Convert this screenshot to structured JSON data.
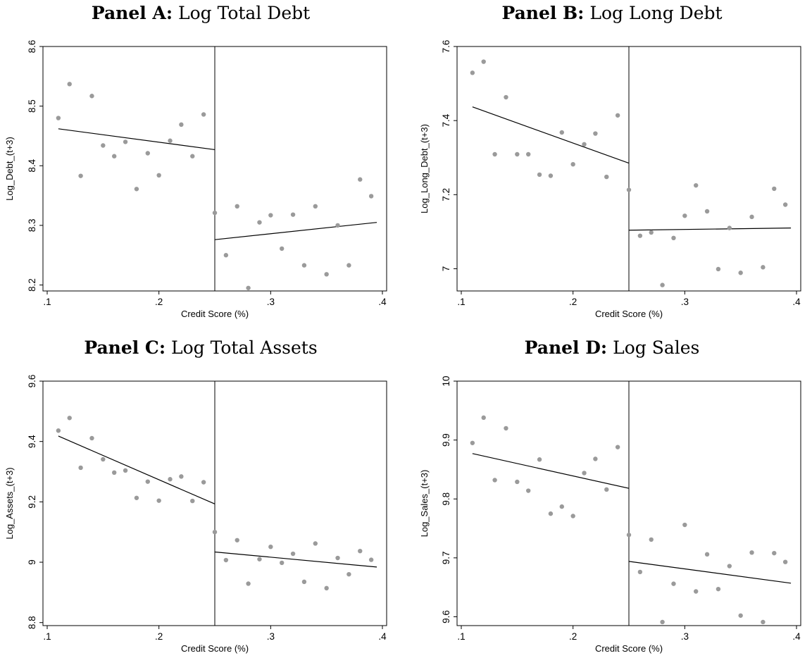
{
  "chart_data": [
    {
      "panel_label": "Panel A:",
      "title": "Log Total Debt",
      "type": "scatter",
      "xlabel": "Credit Score (%)",
      "ylabel": "Log_Debt_(t+3)",
      "xlim": [
        0.1,
        0.4
      ],
      "ylim": [
        8.19,
        8.6
      ],
      "xticks": [
        0.1,
        0.2,
        0.3,
        0.4
      ],
      "xtick_labels": [
        ".1",
        ".2",
        ".3",
        ".4"
      ],
      "yticks": [
        8.2,
        8.3,
        8.4,
        8.5,
        8.6
      ],
      "ytick_labels": [
        "8.2",
        "8.3",
        "8.4",
        "8.5",
        "8.6"
      ],
      "cutoff": 0.25,
      "x": [
        0.11,
        0.12,
        0.13,
        0.14,
        0.15,
        0.16,
        0.17,
        0.18,
        0.19,
        0.2,
        0.21,
        0.22,
        0.23,
        0.24,
        0.25,
        0.26,
        0.27,
        0.28,
        0.29,
        0.3,
        0.31,
        0.32,
        0.33,
        0.34,
        0.35,
        0.36,
        0.37,
        0.38,
        0.39
      ],
      "y": [
        8.48,
        8.537,
        8.383,
        8.517,
        8.434,
        8.416,
        8.44,
        8.361,
        8.421,
        8.384,
        8.442,
        8.469,
        8.416,
        8.486,
        8.321,
        8.25,
        8.332,
        8.195,
        8.305,
        8.317,
        8.261,
        8.318,
        8.233,
        8.332,
        8.218,
        8.3,
        8.233,
        8.377,
        8.349
      ],
      "fit_left": [
        [
          0.11,
          8.462
        ],
        [
          0.25,
          8.427
        ]
      ],
      "fit_right": [
        [
          0.25,
          8.276
        ],
        [
          0.395,
          8.305
        ]
      ]
    },
    {
      "panel_label": "Panel B:",
      "title": "Log Long Debt",
      "type": "scatter",
      "xlabel": "Credit Score (%)",
      "ylabel": "Log_Long_Debt_(t+3)",
      "xlim": [
        0.1,
        0.4
      ],
      "ylim": [
        6.94,
        7.6
      ],
      "xticks": [
        0.1,
        0.2,
        0.3,
        0.4
      ],
      "xtick_labels": [
        ".1",
        ".2",
        ".3",
        ".4"
      ],
      "yticks": [
        7.0,
        7.2,
        7.4,
        7.6
      ],
      "ytick_labels": [
        "7",
        "7.2",
        "7.4",
        "7.6"
      ],
      "cutoff": 0.25,
      "x": [
        0.11,
        0.12,
        0.13,
        0.14,
        0.15,
        0.16,
        0.17,
        0.18,
        0.19,
        0.2,
        0.21,
        0.22,
        0.23,
        0.24,
        0.25,
        0.26,
        0.27,
        0.28,
        0.29,
        0.3,
        0.31,
        0.32,
        0.33,
        0.34,
        0.35,
        0.36,
        0.37,
        0.38,
        0.39
      ],
      "y": [
        7.529,
        7.559,
        7.309,
        7.463,
        7.309,
        7.309,
        7.254,
        7.251,
        7.368,
        7.282,
        7.336,
        7.365,
        7.248,
        7.414,
        7.213,
        7.089,
        7.098,
        6.956,
        7.083,
        7.143,
        7.225,
        7.155,
        6.999,
        7.11,
        6.989,
        7.14,
        7.004,
        7.216,
        7.173
      ],
      "fit_left": [
        [
          0.11,
          7.437
        ],
        [
          0.25,
          7.285
        ]
      ],
      "fit_right": [
        [
          0.25,
          7.104
        ],
        [
          0.395,
          7.11
        ]
      ]
    },
    {
      "panel_label": "Panel C:",
      "title": "Log Total Assets",
      "type": "scatter",
      "xlabel": "Credit Score (%)",
      "ylabel": "Log_Assets_(t+3)",
      "xlim": [
        0.1,
        0.4
      ],
      "ylim": [
        8.79,
        9.6
      ],
      "xticks": [
        0.1,
        0.2,
        0.3,
        0.4
      ],
      "xtick_labels": [
        ".1",
        ".2",
        ".3",
        ".4"
      ],
      "yticks": [
        8.8,
        9.0,
        9.2,
        9.4,
        9.6
      ],
      "ytick_labels": [
        "8.8",
        "9",
        "9.2",
        "9.4",
        "9.6"
      ],
      "cutoff": 0.25,
      "x": [
        0.11,
        0.12,
        0.13,
        0.14,
        0.15,
        0.16,
        0.17,
        0.18,
        0.19,
        0.2,
        0.21,
        0.22,
        0.23,
        0.24,
        0.25,
        0.26,
        0.27,
        0.28,
        0.29,
        0.3,
        0.31,
        0.32,
        0.33,
        0.34,
        0.35,
        0.36,
        0.37,
        0.38,
        0.39
      ],
      "y": [
        9.436,
        9.478,
        9.313,
        9.411,
        9.341,
        9.297,
        9.304,
        9.213,
        9.267,
        9.204,
        9.275,
        9.284,
        9.203,
        9.265,
        9.1,
        9.007,
        9.073,
        8.929,
        9.01,
        9.051,
        8.998,
        9.028,
        8.935,
        9.062,
        8.914,
        9.014,
        8.96,
        9.037,
        9.008
      ],
      "fit_left": [
        [
          0.11,
          9.418
        ],
        [
          0.25,
          9.193
        ]
      ],
      "fit_right": [
        [
          0.25,
          9.034
        ],
        [
          0.395,
          8.984
        ]
      ]
    },
    {
      "panel_label": "Panel D:",
      "title": "Log Sales",
      "type": "scatter",
      "xlabel": "Credit Score (%)",
      "ylabel": "Log_Sales_(t+3)",
      "xlim": [
        0.1,
        0.4
      ],
      "ylim": [
        9.585,
        10.0
      ],
      "xticks": [
        0.1,
        0.2,
        0.3,
        0.4
      ],
      "xtick_labels": [
        ".1",
        ".2",
        ".3",
        ".4"
      ],
      "yticks": [
        9.6,
        9.7,
        9.8,
        9.9,
        10.0
      ],
      "ytick_labels": [
        "9.6",
        "9.7",
        "9.8",
        "9.9",
        "10"
      ],
      "cutoff": 0.25,
      "x": [
        0.11,
        0.12,
        0.13,
        0.14,
        0.15,
        0.16,
        0.17,
        0.18,
        0.19,
        0.2,
        0.21,
        0.22,
        0.23,
        0.24,
        0.25,
        0.26,
        0.27,
        0.28,
        0.29,
        0.3,
        0.31,
        0.32,
        0.33,
        0.34,
        0.35,
        0.36,
        0.37,
        0.38,
        0.39
      ],
      "y": [
        9.895,
        9.938,
        9.832,
        9.92,
        9.829,
        9.814,
        9.867,
        9.775,
        9.787,
        9.771,
        9.844,
        9.868,
        9.816,
        9.888,
        9.739,
        9.676,
        9.731,
        9.591,
        9.656,
        9.756,
        9.643,
        9.706,
        9.647,
        9.686,
        9.602,
        9.709,
        9.591,
        9.708,
        9.693
      ],
      "fit_left": [
        [
          0.11,
          9.877
        ],
        [
          0.25,
          9.818
        ]
      ],
      "fit_right": [
        [
          0.25,
          9.694
        ],
        [
          0.395,
          9.657
        ]
      ]
    }
  ]
}
